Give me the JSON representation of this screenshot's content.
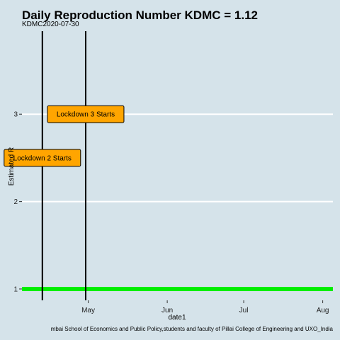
{
  "chart_data": {
    "type": "line",
    "title": "Daily Reproduction Number KDMC = 1.12",
    "subtitle": "KDMC2020-07-30",
    "xlabel": "date1",
    "ylabel": "Estimated R",
    "caption": "mbai School of Economics and Public Policy,students and faculty of Pillai College of Engineering and UXO_India",
    "x_ticks": [
      "May",
      "Jun",
      "Jul",
      "Aug"
    ],
    "x_tick_dates": [
      "2020-05-01",
      "2020-06-01",
      "2020-07-01",
      "2020-08-01"
    ],
    "xlim": [
      "2020-04-05",
      "2020-08-05"
    ],
    "y_ticks": [
      1,
      2,
      3
    ],
    "ylim": [
      0.87,
      3.95
    ],
    "grid": "horizontal",
    "series": [
      {
        "color": "#00ee00",
        "x": [
          "2020-04-05",
          "2020-08-05"
        ],
        "y": [
          1,
          1
        ]
      }
    ],
    "vlines": [
      {
        "date": "2020-04-13",
        "label": "Lockdown 2 Starts",
        "label_y": 2.5
      },
      {
        "date": "2020-04-30",
        "label": "Lockdown 3 Starts",
        "label_y": 3.0
      }
    ],
    "annotation_fill": "#ffa500"
  }
}
